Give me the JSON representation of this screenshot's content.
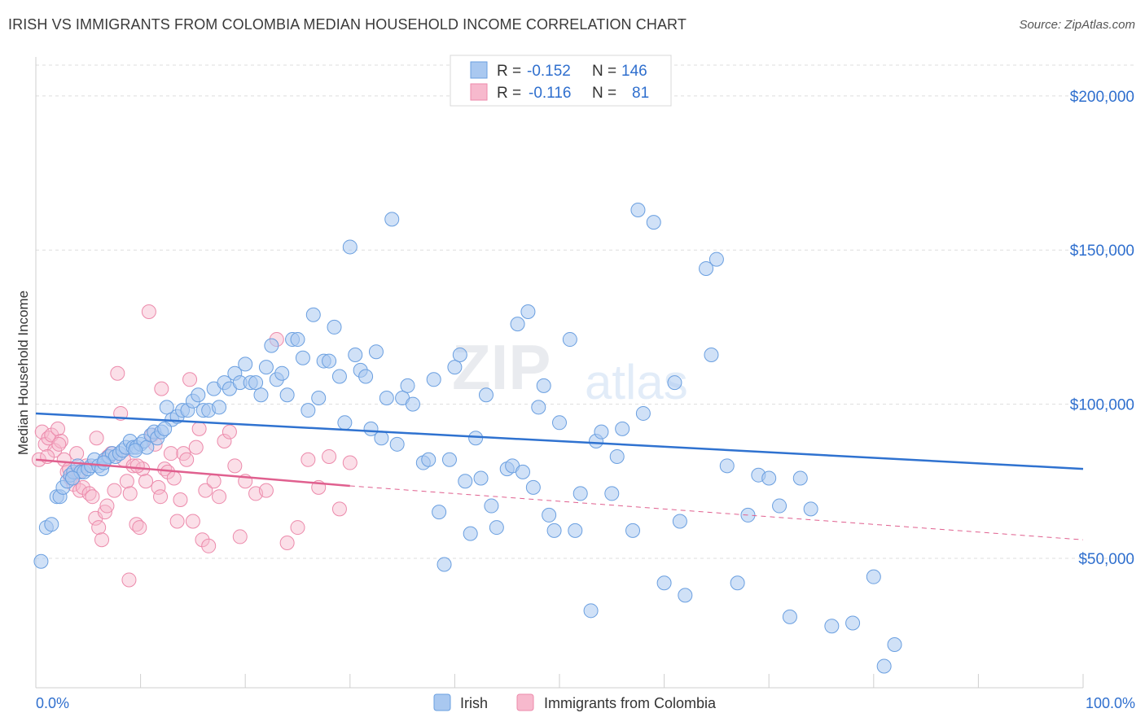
{
  "title": "IRISH VS IMMIGRANTS FROM COLOMBIA MEDIAN HOUSEHOLD INCOME CORRELATION CHART",
  "source": "Source: ZipAtlas.com",
  "watermark": "ZIPatlas",
  "colors": {
    "irish_fill": "#a9c8f0",
    "irish_stroke": "#6a9fe0",
    "irish_line": "#2f72d0",
    "colombia_fill": "#f7b9cd",
    "colombia_stroke": "#ec8aab",
    "colombia_line": "#e0608f",
    "value_text": "#2f6fce",
    "grid": "#dddddd"
  },
  "legend_top": {
    "rows": [
      {
        "r_label": "R =",
        "r_value": "-0.152",
        "n_label": "N =",
        "n_value": "146"
      },
      {
        "r_label": "R =",
        "r_value": "-0.116",
        "n_label": "N =",
        "n_value": "81"
      }
    ]
  },
  "legend_bottom": {
    "items": [
      "Irish",
      "Immigrants from Colombia"
    ]
  },
  "chart_data": {
    "type": "scatter",
    "xlabel": "",
    "ylabel": "Median Household Income",
    "xlim": [
      0,
      100
    ],
    "ylim": [
      8000,
      210000
    ],
    "x_tick_labels": [
      "0.0%",
      "100.0%"
    ],
    "y_ticks": [
      50000,
      100000,
      150000,
      200000
    ],
    "y_tick_labels": [
      "$50,000",
      "$100,000",
      "$150,000",
      "$200,000"
    ],
    "grid": "horizontal dashed",
    "legend": "top-center",
    "series": [
      {
        "name": "Irish",
        "trend": {
          "x": [
            0,
            100
          ],
          "y": [
            97000,
            79000
          ]
        },
        "points": [
          [
            0.5,
            49000
          ],
          [
            1,
            60000
          ],
          [
            1.5,
            61000
          ],
          [
            2,
            70000
          ],
          [
            2.3,
            70000
          ],
          [
            2.6,
            73000
          ],
          [
            3,
            75000
          ],
          [
            3.3,
            77000
          ],
          [
            3.6,
            78000
          ],
          [
            4,
            80000
          ],
          [
            4.3,
            78000
          ],
          [
            4.6,
            78000
          ],
          [
            5,
            79000
          ],
          [
            5.3,
            80000
          ],
          [
            5.6,
            82000
          ],
          [
            6,
            80000
          ],
          [
            6.3,
            79000
          ],
          [
            6.6,
            82000
          ],
          [
            7,
            83000
          ],
          [
            7.3,
            84000
          ],
          [
            7.6,
            83000
          ],
          [
            8,
            84000
          ],
          [
            8.3,
            85000
          ],
          [
            8.6,
            86000
          ],
          [
            9,
            88000
          ],
          [
            9.3,
            86000
          ],
          [
            9.6,
            86000
          ],
          [
            10,
            87000
          ],
          [
            10.3,
            88000
          ],
          [
            10.6,
            86000
          ],
          [
            11,
            90000
          ],
          [
            11.3,
            91000
          ],
          [
            11.6,
            89000
          ],
          [
            12,
            91000
          ],
          [
            12.5,
            99000
          ],
          [
            13,
            95000
          ],
          [
            13.5,
            96000
          ],
          [
            14,
            98000
          ],
          [
            14.5,
            98000
          ],
          [
            15,
            101000
          ],
          [
            15.5,
            103000
          ],
          [
            16,
            98000
          ],
          [
            16.5,
            98000
          ],
          [
            17,
            105000
          ],
          [
            17.5,
            99000
          ],
          [
            18,
            107000
          ],
          [
            18.5,
            105000
          ],
          [
            19,
            110000
          ],
          [
            19.5,
            107000
          ],
          [
            20,
            113000
          ],
          [
            20.5,
            107000
          ],
          [
            21,
            107000
          ],
          [
            21.5,
            103000
          ],
          [
            22,
            112000
          ],
          [
            22.5,
            119000
          ],
          [
            23,
            108000
          ],
          [
            23.5,
            110000
          ],
          [
            24,
            103000
          ],
          [
            24.5,
            121000
          ],
          [
            25,
            121000
          ],
          [
            25.5,
            115000
          ],
          [
            26,
            98000
          ],
          [
            26.5,
            129000
          ],
          [
            27,
            102000
          ],
          [
            27.5,
            114000
          ],
          [
            28,
            114000
          ],
          [
            28.5,
            125000
          ],
          [
            29,
            109000
          ],
          [
            29.5,
            94000
          ],
          [
            30,
            151000
          ],
          [
            30.5,
            116000
          ],
          [
            31,
            111000
          ],
          [
            31.5,
            109000
          ],
          [
            32,
            92000
          ],
          [
            32.5,
            117000
          ],
          [
            33,
            89000
          ],
          [
            33.5,
            102000
          ],
          [
            34,
            160000
          ],
          [
            34.5,
            87000
          ],
          [
            35,
            102000
          ],
          [
            35.5,
            106000
          ],
          [
            36,
            100000
          ],
          [
            37,
            81000
          ],
          [
            37.5,
            82000
          ],
          [
            38,
            108000
          ],
          [
            38.5,
            65000
          ],
          [
            39,
            48000
          ],
          [
            39.5,
            82000
          ],
          [
            40,
            112000
          ],
          [
            40.5,
            116000
          ],
          [
            41,
            75000
          ],
          [
            41.5,
            58000
          ],
          [
            42,
            89000
          ],
          [
            42.5,
            76000
          ],
          [
            43,
            103000
          ],
          [
            43.5,
            67000
          ],
          [
            44,
            60000
          ],
          [
            45,
            79000
          ],
          [
            45.5,
            80000
          ],
          [
            46,
            126000
          ],
          [
            46.5,
            78000
          ],
          [
            47,
            130000
          ],
          [
            47.5,
            73000
          ],
          [
            48,
            99000
          ],
          [
            48.5,
            106000
          ],
          [
            49,
            64000
          ],
          [
            49.5,
            59000
          ],
          [
            50,
            94000
          ],
          [
            51,
            121000
          ],
          [
            51.5,
            59000
          ],
          [
            52,
            71000
          ],
          [
            53,
            33000
          ],
          [
            53.5,
            88000
          ],
          [
            54,
            91000
          ],
          [
            55,
            71000
          ],
          [
            55.5,
            83000
          ],
          [
            56,
            92000
          ],
          [
            57,
            59000
          ],
          [
            57.5,
            163000
          ],
          [
            58,
            97000
          ],
          [
            59,
            159000
          ],
          [
            60,
            42000
          ],
          [
            61,
            107000
          ],
          [
            61.5,
            62000
          ],
          [
            62,
            38000
          ],
          [
            64,
            144000
          ],
          [
            64.5,
            116000
          ],
          [
            65,
            147000
          ],
          [
            66,
            80000
          ],
          [
            67,
            42000
          ],
          [
            68,
            64000
          ],
          [
            69,
            77000
          ],
          [
            70,
            76000
          ],
          [
            71,
            67000
          ],
          [
            72,
            31000
          ],
          [
            73,
            76000
          ],
          [
            74,
            66000
          ],
          [
            76,
            28000
          ],
          [
            78,
            29000
          ],
          [
            80,
            44000
          ],
          [
            81,
            15000
          ],
          [
            82,
            22000
          ],
          [
            3.5,
            76000
          ],
          [
            6.5,
            81000
          ],
          [
            9.5,
            85000
          ],
          [
            12.3,
            92000
          ]
        ]
      },
      {
        "name": "Immigrants from Colombia",
        "trend": {
          "x": [
            0,
            30,
            100
          ],
          "y": [
            82000,
            73500,
            56000
          ]
        },
        "points": [
          [
            0.3,
            82000
          ],
          [
            0.6,
            91000
          ],
          [
            0.9,
            87000
          ],
          [
            1.2,
            89000
          ],
          [
            1.5,
            90000
          ],
          [
            1.8,
            85000
          ],
          [
            2.1,
            92000
          ],
          [
            2.4,
            88000
          ],
          [
            2.7,
            82000
          ],
          [
            3,
            78000
          ],
          [
            3.3,
            76000
          ],
          [
            3.6,
            74000
          ],
          [
            3.9,
            84000
          ],
          [
            4.2,
            72000
          ],
          [
            4.5,
            73000
          ],
          [
            4.8,
            80000
          ],
          [
            5.1,
            71000
          ],
          [
            5.4,
            70000
          ],
          [
            5.7,
            63000
          ],
          [
            6,
            60000
          ],
          [
            6.3,
            56000
          ],
          [
            6.6,
            65000
          ],
          [
            6.9,
            83000
          ],
          [
            7.2,
            84000
          ],
          [
            7.5,
            72000
          ],
          [
            7.8,
            110000
          ],
          [
            8.1,
            97000
          ],
          [
            8.4,
            82000
          ],
          [
            8.7,
            75000
          ],
          [
            9,
            71000
          ],
          [
            9.3,
            80000
          ],
          [
            9.6,
            61000
          ],
          [
            9.9,
            60000
          ],
          [
            10.2,
            79000
          ],
          [
            10.5,
            75000
          ],
          [
            10.8,
            130000
          ],
          [
            11.1,
            90000
          ],
          [
            11.4,
            87000
          ],
          [
            11.7,
            73000
          ],
          [
            12,
            105000
          ],
          [
            12.3,
            79000
          ],
          [
            12.6,
            78000
          ],
          [
            12.9,
            84000
          ],
          [
            13.2,
            76000
          ],
          [
            13.5,
            62000
          ],
          [
            13.8,
            69000
          ],
          [
            14.1,
            84000
          ],
          [
            14.4,
            82000
          ],
          [
            14.7,
            108000
          ],
          [
            15,
            62000
          ],
          [
            15.3,
            86000
          ],
          [
            15.6,
            92000
          ],
          [
            15.9,
            56000
          ],
          [
            16.2,
            72000
          ],
          [
            16.5,
            54000
          ],
          [
            17,
            75000
          ],
          [
            17.5,
            70000
          ],
          [
            18,
            88000
          ],
          [
            18.5,
            91000
          ],
          [
            19,
            80000
          ],
          [
            19.5,
            57000
          ],
          [
            20,
            75000
          ],
          [
            21,
            71000
          ],
          [
            22,
            72000
          ],
          [
            23,
            121000
          ],
          [
            24,
            55000
          ],
          [
            25,
            60000
          ],
          [
            26,
            82000
          ],
          [
            27,
            73000
          ],
          [
            28,
            83000
          ],
          [
            29,
            66000
          ],
          [
            30,
            81000
          ],
          [
            3.2,
            79000
          ],
          [
            5.8,
            89000
          ],
          [
            8.9,
            43000
          ],
          [
            11.9,
            70000
          ],
          [
            1.1,
            83000
          ],
          [
            2.2,
            87000
          ],
          [
            4.1,
            78000
          ],
          [
            6.8,
            67000
          ],
          [
            9.7,
            80000
          ]
        ]
      }
    ]
  }
}
